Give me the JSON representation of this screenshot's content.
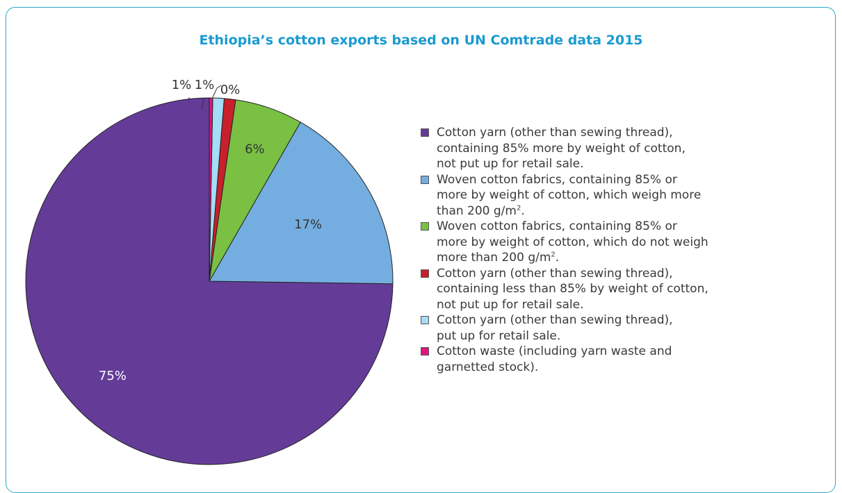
{
  "chart_data": {
    "type": "pie",
    "title": "Ethiopia’s cotton exports based on UN Comtrade data 2015",
    "slices": [
      {
        "label": "75%",
        "value": 75,
        "color": "#643c98",
        "name": "Cotton yarn (other than sewing thread),\ncontaining 85% more by weight of cotton,\nnot put up for retail sale."
      },
      {
        "label": "17%",
        "value": 17,
        "color": "#74aee0",
        "name": "Woven cotton fabrics, containing 85% or\nmore by weight of cotton, which weigh more\nthan 200 g/m",
        "name_sup": "2",
        "name_after": "."
      },
      {
        "label": "6%",
        "value": 6,
        "color": "#79c043",
        "name": "Woven cotton fabrics, containing 85% or\nmore by weight of cotton, which do not weigh\nmore than 200 g/m",
        "name_sup": "2",
        "name_after": "."
      },
      {
        "label": "1%",
        "value": 1,
        "color": "#c8202c",
        "name": "Cotton yarn (other than sewing thread),\ncontaining less than 85% by weight of cotton,\nnot put up for retail sale."
      },
      {
        "label": "1%",
        "value": 1,
        "color": "#a5dcf6",
        "name": "Cotton yarn (other than sewing thread),\nput up for retail sale."
      },
      {
        "label": "0%",
        "value": 0.3,
        "color": "#e0157e",
        "name": "Cotton waste (including yarn waste and\ngarnetted stock)."
      }
    ],
    "start_angle": "12 o'clock",
    "direction": "counter-clockwise",
    "legend_position": "right"
  }
}
